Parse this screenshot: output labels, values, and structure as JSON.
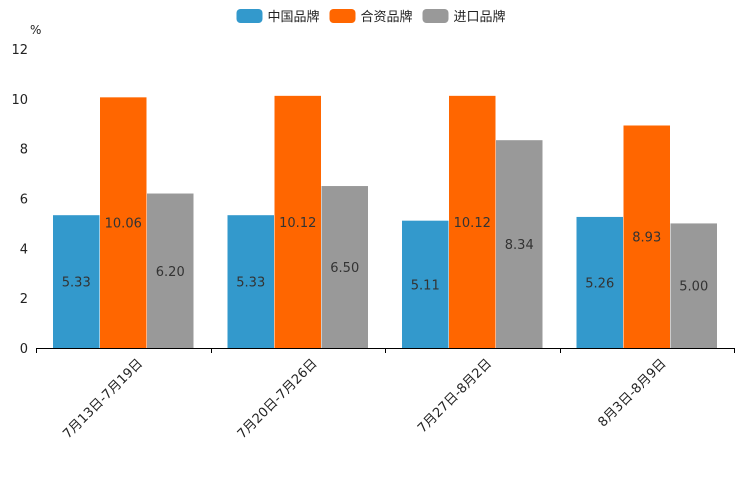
{
  "chart_data": {
    "type": "bar",
    "title": "",
    "unit_label": "%",
    "xlabel": "",
    "ylabel": "",
    "ylim": [
      0,
      12
    ],
    "yticks": [
      0,
      2,
      4,
      6,
      8,
      10,
      12
    ],
    "grid": false,
    "legend_position": "top-center",
    "categories": [
      "7月13日-7月19日",
      "7月20日-7月26日",
      "7月27日-8月2日",
      "8月3日-8月9日"
    ],
    "series": [
      {
        "name": "中国品牌",
        "color": "#3399CC",
        "values": [
          5.33,
          5.33,
          5.11,
          5.26
        ],
        "labels": [
          "5.33",
          "5.33",
          "5.11",
          "5.26"
        ]
      },
      {
        "name": "合资品牌",
        "color": "#FF6600",
        "values": [
          10.06,
          10.12,
          10.12,
          8.93
        ],
        "labels": [
          "10.06",
          "10.12",
          "10.12",
          "8.93"
        ]
      },
      {
        "name": "进口品牌",
        "color": "#999999",
        "values": [
          6.2,
          6.5,
          8.34,
          5.0
        ],
        "labels": [
          "6.20",
          "6.50",
          "8.34",
          "5.00"
        ]
      }
    ]
  }
}
